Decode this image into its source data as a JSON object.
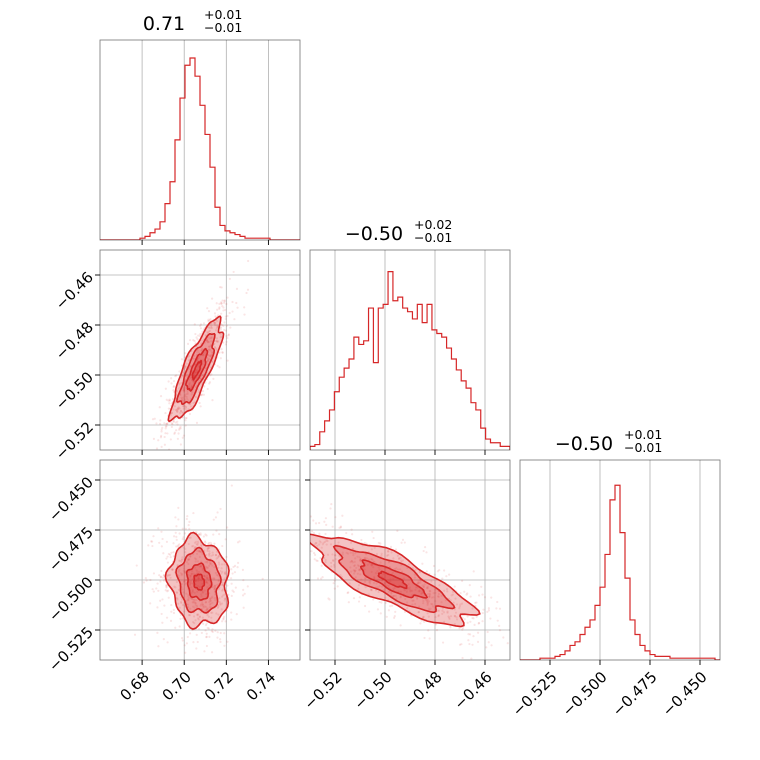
{
  "chart_data": {
    "type": "corner",
    "series_color": "#d62728",
    "parameters": [
      {
        "index": 0,
        "title": {
          "value": "0.71",
          "plus": "+0.01",
          "minus": "−0.01"
        },
        "range": [
          0.66,
          0.755
        ],
        "ticks": [
          0.68,
          0.7,
          0.72,
          0.74
        ],
        "tick_labels": [
          "0.68",
          "0.70",
          "0.72",
          "0.74"
        ]
      },
      {
        "index": 1,
        "title": {
          "value": "−0.50",
          "plus": "+0.02",
          "minus": "−0.01"
        },
        "range": [
          -0.53,
          -0.45
        ],
        "ticks": [
          -0.52,
          -0.5,
          -0.48,
          -0.46
        ],
        "tick_labels": [
          "−0.52",
          "−0.50",
          "−0.48",
          "−0.46"
        ]
      },
      {
        "index": 2,
        "title": {
          "value": "−0.50",
          "plus": "+0.01",
          "minus": "−0.01"
        },
        "range": [
          -0.54,
          -0.44
        ],
        "ticks": [
          -0.525,
          -0.5,
          -0.475,
          -0.45
        ],
        "tick_labels": [
          "−0.525",
          "−0.500",
          "−0.475",
          "−0.450"
        ]
      }
    ],
    "histograms": [
      {
        "param": 0,
        "heights": [
          0,
          0,
          0,
          0,
          0,
          0,
          0,
          0,
          0.01,
          0.02,
          0.04,
          0.06,
          0.1,
          0.2,
          0.32,
          0.55,
          0.78,
          0.96,
          1.0,
          0.9,
          0.74,
          0.58,
          0.4,
          0.18,
          0.08,
          0.05,
          0.04,
          0.03,
          0.02,
          0.01,
          0.01,
          0.01,
          0.01,
          0.01,
          0,
          0,
          0,
          0,
          0,
          0
        ]
      },
      {
        "param": 1,
        "heights": [
          0.02,
          0.03,
          0.1,
          0.16,
          0.22,
          0.32,
          0.4,
          0.45,
          0.5,
          0.62,
          0.58,
          0.6,
          0.78,
          0.48,
          0.78,
          0.8,
          0.98,
          0.82,
          0.84,
          0.78,
          0.76,
          0.72,
          0.8,
          0.7,
          0.8,
          0.66,
          0.64,
          0.62,
          0.56,
          0.5,
          0.44,
          0.38,
          0.34,
          0.26,
          0.22,
          0.12,
          0.06,
          0.04,
          0.04,
          0.02,
          0.02
        ]
      },
      {
        "param": 2,
        "heights": [
          0,
          0,
          0,
          0,
          0.01,
          0.01,
          0.01,
          0.02,
          0.03,
          0.05,
          0.08,
          0.1,
          0.14,
          0.18,
          0.22,
          0.3,
          0.4,
          0.58,
          0.88,
          0.96,
          0.7,
          0.45,
          0.22,
          0.14,
          0.08,
          0.05,
          0.03,
          0.02,
          0.02,
          0.02,
          0.01,
          0.01,
          0.01,
          0.01,
          0.01,
          0.01,
          0.01,
          0.01,
          0.01,
          0
        ]
      }
    ],
    "pairs": [
      {
        "x_param": 0,
        "y_param": 1,
        "mean": [
          0.706,
          -0.498
        ],
        "sd": [
          0.006,
          0.01
        ],
        "rho": 0.82
      },
      {
        "x_param": 0,
        "y_param": 2,
        "mean": [
          0.707,
          -0.501
        ],
        "sd": [
          0.007,
          0.011
        ],
        "rho": -0.1
      },
      {
        "x_param": 1,
        "y_param": 2,
        "mean": [
          -0.497,
          -0.5
        ],
        "sd": [
          0.016,
          0.011
        ],
        "rho": -0.8
      }
    ]
  }
}
